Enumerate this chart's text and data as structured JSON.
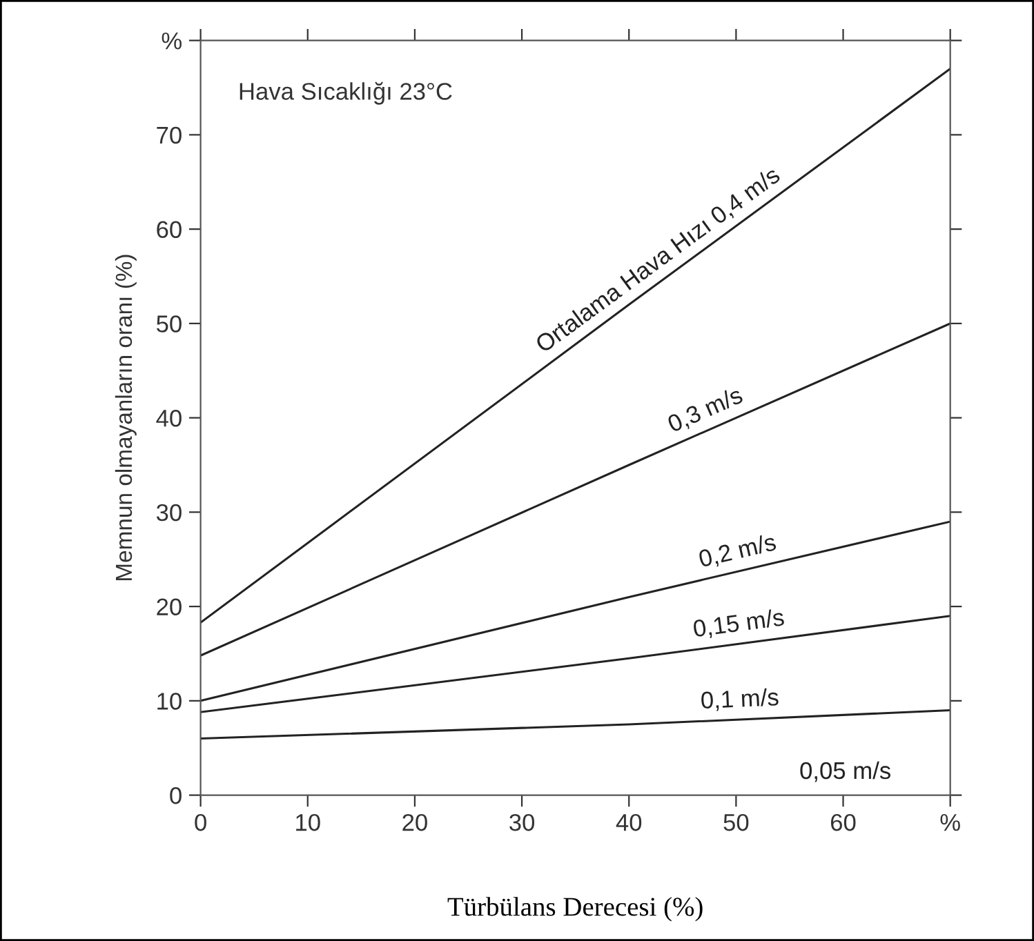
{
  "chart_data": {
    "type": "line",
    "xlabel": "Türbülans Derecesi (%)",
    "ylabel": "Memnun olmayanların oranı (%)",
    "annotations": [
      "Hava Sıcaklığı 23°C",
      "0,05 m/s"
    ],
    "x": [
      0,
      40,
      70
    ],
    "series": [
      {
        "name": "Ortalama Hava Hızı 0,4 m/s",
        "color": "#222222",
        "values": [
          18.3,
          52,
          77
        ]
      },
      {
        "name": "0,3 m/s",
        "color": "#222222",
        "values": [
          14.8,
          35,
          50
        ]
      },
      {
        "name": "0,2 m/s",
        "color": "#222222",
        "values": [
          10,
          21,
          29
        ]
      },
      {
        "name": "0,15 m/s",
        "color": "#222222",
        "values": [
          8.8,
          14.5,
          19
        ]
      },
      {
        "name": "0,1 m/s",
        "color": "#222222",
        "values": [
          6,
          7.5,
          9
        ]
      }
    ],
    "xlim": [
      0,
      70
    ],
    "ylim": [
      0,
      80
    ],
    "xticks": [
      0,
      10,
      20,
      30,
      40,
      50,
      60,
      {
        "value": 70,
        "label": "%"
      }
    ],
    "yticks": [
      0,
      10,
      20,
      30,
      40,
      50,
      60,
      70,
      {
        "value": 80,
        "label": "%"
      }
    ],
    "grid": false,
    "legend": false,
    "marker": "none",
    "line_style": "solid"
  }
}
